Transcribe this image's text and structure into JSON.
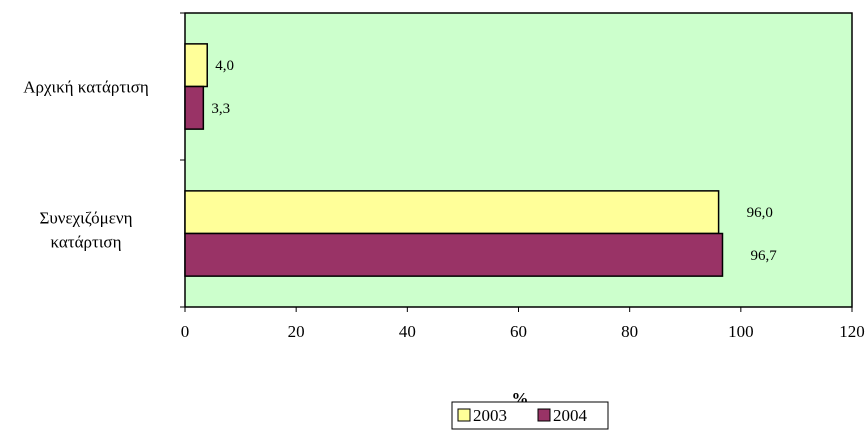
{
  "chart_data": {
    "type": "bar",
    "orientation": "horizontal",
    "categories": [
      "Αρχική κατάρτιση",
      "Συνεχιζόμενη κατάρτιση"
    ],
    "series": [
      {
        "name": "2003",
        "values": [
          4.0,
          96.0
        ],
        "labels": [
          "4,0",
          "96,0"
        ],
        "color": "#FFFF99"
      },
      {
        "name": "2004",
        "values": [
          3.3,
          96.7
        ],
        "labels": [
          "3,3",
          "96,7"
        ],
        "color": "#993366"
      }
    ],
    "xlabel": "%",
    "ylabel": "",
    "xlim": [
      0,
      120
    ],
    "xticks": [
      "0",
      "20",
      "40",
      "60",
      "80",
      "100",
      "120"
    ],
    "grid": false,
    "plot_background": "#CCFFCC",
    "legend_position": "bottom"
  }
}
